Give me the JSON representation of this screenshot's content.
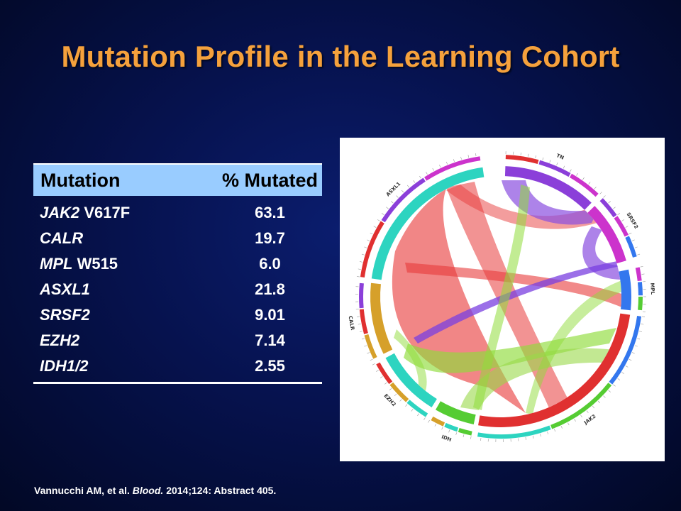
{
  "slide": {
    "title": "Mutation Profile in the Learning Cohort",
    "citation": {
      "authors": "Vannucchi AM, et al.",
      "journal": "Blood.",
      "details": "2014;124: Abstract 405."
    }
  },
  "table": {
    "headers": [
      "Mutation",
      "% Mutated"
    ],
    "rows": [
      {
        "gene": "JAK2",
        "variant": " V617F",
        "value": "63.1"
      },
      {
        "gene": "CALR",
        "variant": "",
        "value": "19.7"
      },
      {
        "gene": "MPL",
        "variant": " W515",
        "value": "6.0"
      },
      {
        "gene": "ASXL1",
        "variant": "",
        "value": "21.8"
      },
      {
        "gene": "SRSF2",
        "variant": "",
        "value": "9.01"
      },
      {
        "gene": "EZH2",
        "variant": "",
        "value": "7.14"
      },
      {
        "gene": "IDH1/2",
        "variant": "",
        "value": "2.55"
      }
    ]
  },
  "circos": {
    "segments": [
      {
        "label": "TN",
        "color": "#8b3fd9"
      },
      {
        "label": "SRSF2",
        "color": "#cc33cc"
      },
      {
        "label": "MPL",
        "color": "#3377ee"
      },
      {
        "label": "JAK2",
        "color": "#e03030"
      },
      {
        "label": "IDH",
        "color": "#55cc33"
      },
      {
        "label": "EZH2",
        "color": "#2dd4c0"
      },
      {
        "label": "CALR",
        "color": "#d6a02a"
      },
      {
        "label": "ASXL1",
        "color": "#2dd4c0"
      }
    ]
  }
}
